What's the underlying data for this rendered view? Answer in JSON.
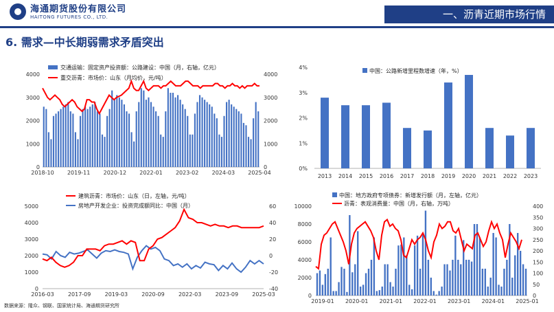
{
  "header": {
    "brand_cn": "海通期货股份有限公司",
    "brand_en": "HAITONG FUTURES CO., LTD.",
    "section_title": "一、沥青近期市场行情"
  },
  "page_title": "6. 需求—中长期弱需求矛盾突出",
  "footnote": "数据来源：隆众、钢联、国家统计局、海通期货研究所",
  "colors": {
    "bar": "#4472c4",
    "red": "#ff0000",
    "blue_line": "#4472c4",
    "brand": "#1f3f86"
  },
  "chart_data": [
    {
      "type": "bar+line",
      "series": [
        {
          "name": "交通运输：固定资产投资额：公路建设：中国（月，右轴，亿元）",
          "kind": "bar",
          "axis": "right",
          "values": [
            2600,
            2500,
            1500,
            1200,
            2200,
            2300,
            2400,
            2500,
            2600,
            2700,
            2800,
            2400,
            2300,
            1500,
            1200,
            2200,
            2500,
            2600,
            2500,
            2600,
            2700,
            2800,
            2400,
            2300,
            1400,
            1300,
            2200,
            2500,
            3300,
            2900,
            3100,
            3000,
            2900,
            2700,
            2400,
            2300,
            1500,
            1100,
            2400,
            2800,
            3400,
            3300,
            2900,
            3000,
            2800,
            2600,
            2400,
            2200,
            1400,
            1300,
            2400,
            3400,
            3200,
            3200,
            3000,
            3100,
            2900,
            2700,
            2500,
            2200,
            1400,
            1400,
            2300,
            2800,
            3100,
            3000,
            2900,
            2800,
            2700,
            2600,
            2300,
            2100,
            1400,
            1300,
            2200,
            2800,
            2900,
            2700,
            2600,
            2500,
            2400,
            2300,
            1900,
            1800,
            1300,
            1200,
            2100,
            2800,
            2400
          ]
        },
        {
          "name": "重交沥青：市场价：山东（月均价，元/吨）",
          "kind": "line",
          "axis": "left",
          "values": [
            3400,
            3200,
            3000,
            2900,
            3000,
            3100,
            3000,
            2900,
            2700,
            2600,
            2700,
            2800,
            2900,
            2800,
            2600,
            2500,
            2400,
            2500,
            2900,
            2900,
            2800,
            2800,
            2500,
            2300,
            2500,
            2700,
            2900,
            3100,
            3000,
            2900,
            3000,
            3050,
            3100,
            3200,
            3300,
            3400,
            3700,
            3400,
            3300,
            3300,
            3500,
            3700,
            3400,
            3300,
            3400,
            3500,
            3500,
            3500,
            3400,
            3500,
            3500,
            3600,
            3700,
            3600,
            3500,
            3500,
            3500,
            3600,
            3700,
            3700,
            3600,
            3500,
            3500,
            3500,
            3400,
            3500,
            3500,
            3500,
            3500,
            3500,
            3600,
            3600,
            3500,
            3500,
            3400,
            3500,
            3500,
            3600,
            3500,
            3500,
            3400,
            3500,
            3400,
            3500,
            3500,
            3500,
            3600,
            3500,
            3500
          ]
        }
      ],
      "x_ticks": [
        "2018-10",
        "2019-11",
        "2020-12",
        "2022-01",
        "2023-02",
        "2024-03",
        "2025-04"
      ],
      "left_axis": {
        "min": 0,
        "max": 4000,
        "ticks": [
          "0",
          "1000",
          "2000",
          "3000",
          "4000"
        ]
      },
      "right_axis": {
        "min": 0,
        "max": 4000,
        "ticks": [
          "0",
          "1000",
          "2000",
          "3000",
          "4000"
        ]
      }
    },
    {
      "type": "bar",
      "series": [
        {
          "name": "中国：公路新增里程数增速（年，%）",
          "values": [
            2.8,
            2.5,
            2.5,
            2.6,
            1.6,
            1.5,
            3.4,
            3.7,
            1.6,
            1.3,
            1.6
          ]
        }
      ],
      "categories": [
        "2013",
        "2014",
        "2015",
        "2016",
        "2017",
        "2018",
        "2019",
        "2020",
        "2021",
        "2022",
        "2023"
      ],
      "y_axis": {
        "min": 0,
        "max": 4,
        "ticks": [
          "0%",
          "1%",
          "2%",
          "3%",
          "4%"
        ]
      }
    },
    {
      "type": "line",
      "series": [
        {
          "name": "建筑沥青：市场价：山东（日，左轴，元/吨）",
          "axis": "left",
          "color": "#ff0000",
          "values": [
            1800,
            1700,
            1900,
            1600,
            1400,
            1300,
            1400,
            1600,
            2000,
            2000,
            2400,
            2400,
            2400,
            2300,
            2600,
            2700,
            2700,
            2800,
            2900,
            2700,
            2900,
            2800,
            1700,
            1700,
            2400,
            2600,
            3000,
            3100,
            3300,
            3500,
            3700,
            4100,
            4800,
            4300,
            4200,
            4000,
            4000,
            3900,
            3800,
            3900,
            3800,
            3800,
            3700,
            3800,
            3800,
            3700,
            3700,
            3700,
            3700,
            3700,
            3800
          ]
        },
        {
          "name": "房地产开发企业：投资完成额同比：中国（月）",
          "axis": "right",
          "color": "#4472c4",
          "values": [
            2,
            1,
            -4,
            5,
            0,
            -2,
            4,
            2,
            3,
            5,
            7,
            2,
            -3,
            3,
            6,
            5,
            7,
            5,
            4,
            2,
            -16,
            -2,
            6,
            12,
            8,
            10,
            6,
            -4,
            -6,
            -12,
            -10,
            -14,
            -10,
            -16,
            -12,
            -15,
            -8,
            -10,
            -11,
            -18,
            -12,
            -16,
            -9,
            -16,
            -20,
            -14,
            -6,
            -10,
            -6,
            -10
          ]
        }
      ],
      "x_ticks": [
        "2016-03",
        "2017-09",
        "2019-03",
        "2020-09",
        "2022-03",
        "2023-09",
        "2025-03"
      ],
      "left_axis": {
        "min": 0,
        "max": 5000,
        "ticks": [
          "0",
          "1000",
          "2000",
          "3000",
          "4000",
          "5000"
        ]
      },
      "right_axis": {
        "min": -40,
        "max": 60,
        "ticks": [
          "-40",
          "-20",
          "0",
          "20",
          "40",
          "60"
        ]
      }
    },
    {
      "type": "bar+line",
      "series": [
        {
          "name": "中国：地方政府专项债券：新增发行额（月，左轴，亿元）",
          "kind": "bar",
          "axis": "left",
          "values": [
            2500,
            2800,
            1200,
            2400,
            3000,
            6500,
            500,
            500,
            1500,
            3200,
            3000,
            400,
            9000,
            2600,
            3500,
            7200,
            1000,
            1200,
            2500,
            3000,
            4000,
            6500,
            500,
            600,
            1000,
            3500,
            3500,
            1500,
            1000,
            3000,
            5600,
            5700,
            6500,
            4500,
            1200,
            700,
            5600,
            6700,
            3000,
            7000,
            9500,
            4000,
            2000,
            500,
            100,
            500,
            1000,
            3500,
            3500,
            2800,
            4000,
            6700,
            4000,
            3500,
            6200,
            4000,
            4000,
            3800,
            8000,
            8000,
            6500,
            3000,
            3000,
            1000,
            2000,
            7000,
            6500,
            1200,
            1000,
            3000,
            4000,
            8000,
            2000,
            4500,
            7000,
            5000,
            3500,
            3000
          ]
        },
        {
          "name": "沥青：表观消费量：中国（月，右轴，万吨）",
          "kind": "line",
          "axis": "right",
          "values": [
            130,
            120,
            230,
            270,
            280,
            300,
            320,
            330,
            300,
            270,
            240,
            200,
            140,
            230,
            280,
            300,
            310,
            320,
            330,
            310,
            290,
            260,
            200,
            160,
            270,
            330,
            340,
            310,
            320,
            300,
            290,
            250,
            180,
            170,
            210,
            250,
            230,
            250,
            260,
            280,
            250,
            200,
            170,
            240,
            270,
            320,
            300,
            310,
            330,
            330,
            290,
            280,
            300,
            250,
            200,
            230,
            220,
            210,
            270,
            280,
            250,
            220,
            240,
            290,
            330,
            300,
            320,
            280,
            250,
            170,
            230,
            280,
            260,
            240,
            210,
            250
          ]
        }
      ],
      "x_ticks": [
        "2019-01",
        "2020-01",
        "2021-01",
        "2022-01",
        "2023-01",
        "2024-01",
        "2025-01"
      ],
      "left_axis": {
        "min": 0,
        "max": 10000,
        "ticks": [
          "0",
          "2000",
          "4000",
          "6000",
          "8000",
          "10000"
        ]
      },
      "right_axis": {
        "min": 0,
        "max": 400,
        "ticks": [
          "0",
          "50",
          "100",
          "150",
          "200",
          "250",
          "300",
          "350",
          "400"
        ]
      }
    }
  ]
}
